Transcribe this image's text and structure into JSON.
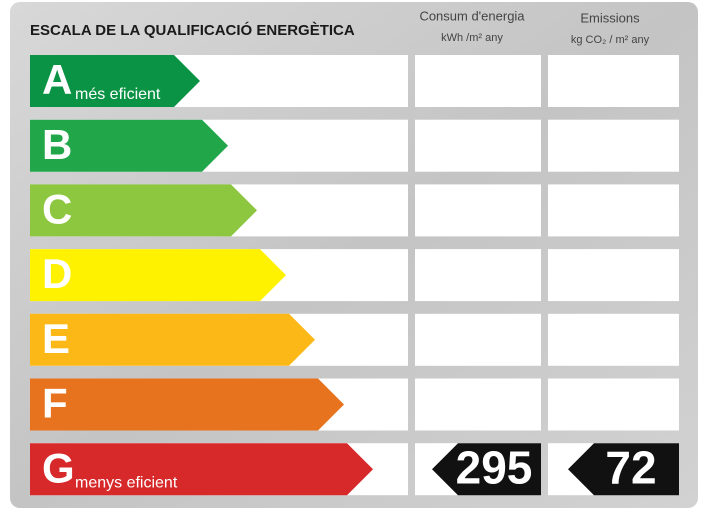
{
  "header": {
    "title": "ESCALA DE LA QUALIFICACIÓ ENERGÈTICA",
    "consumption_title": "Consum d'energia",
    "consumption_unit": "kWh /m² any",
    "emissions_title": "Emissions",
    "emissions_unit": "kg CO₂ / m² any"
  },
  "rows": [
    {
      "letter": "A",
      "label": "més eficient"
    },
    {
      "letter": "B"
    },
    {
      "letter": "C"
    },
    {
      "letter": "D"
    },
    {
      "letter": "E"
    },
    {
      "letter": "F"
    },
    {
      "letter": "G",
      "label": "menys eficient",
      "consumption": 295,
      "emissions": 72
    }
  ]
}
